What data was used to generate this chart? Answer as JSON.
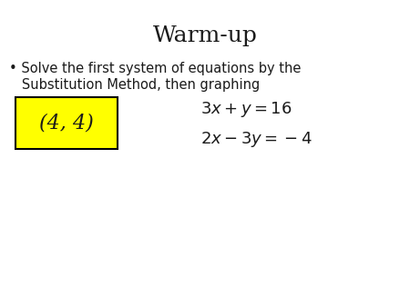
{
  "title": "Warm-up",
  "title_fontsize": 18,
  "bullet_text_line1": "• Solve the first system of equations by the",
  "bullet_text_line2": "   Substitution Method, then graphing",
  "bullet_fontsize": 10.5,
  "answer_text": "(4, 4)",
  "answer_fontsize": 16,
  "answer_box_color": "#ffff00",
  "eq1": "$3x + y = 16$",
  "eq2": "$2x - 3y = -4$",
  "eq_fontsize": 13,
  "background_color": "#ffffff",
  "text_color": "#1a1a1a"
}
